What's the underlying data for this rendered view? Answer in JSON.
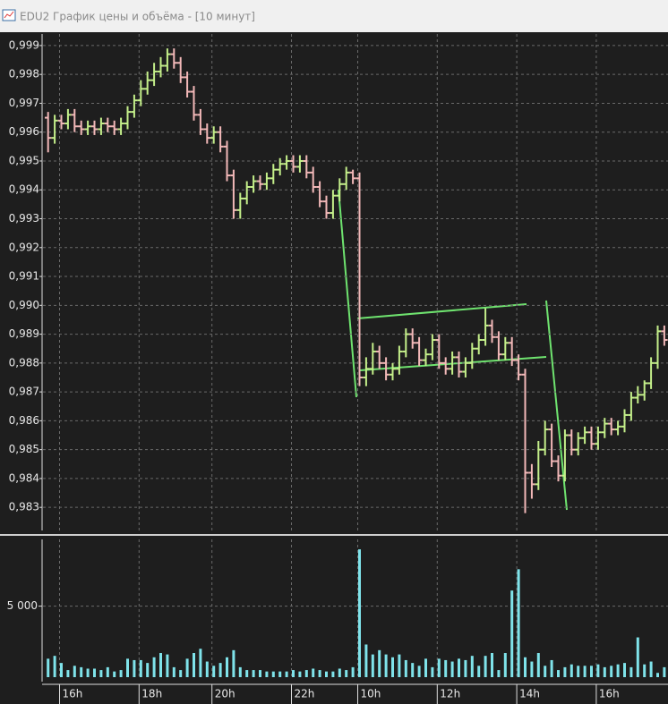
{
  "window_title": "EDU2 График цены и объёма - [10 минут]",
  "chart_data": [
    {
      "type": "ohlc",
      "up_color": "#c4ef8a",
      "down_color": "#f2b8b8",
      "grid": true,
      "ylim": [
        0.9822,
        0.9994
      ],
      "yticks": [
        {
          "value": 0.999,
          "label": "0,999"
        },
        {
          "value": 0.998,
          "label": "0,998"
        },
        {
          "value": 0.997,
          "label": "0,997"
        },
        {
          "value": 0.996,
          "label": "0,996"
        },
        {
          "value": 0.995,
          "label": "0,995"
        },
        {
          "value": 0.994,
          "label": "0,994"
        },
        {
          "value": 0.993,
          "label": "0,993"
        },
        {
          "value": 0.992,
          "label": "0,992"
        },
        {
          "value": 0.991,
          "label": "0,991"
        },
        {
          "value": 0.99,
          "label": "0,990"
        },
        {
          "value": 0.989,
          "label": "0,989"
        },
        {
          "value": 0.988,
          "label": "0,988"
        },
        {
          "value": 0.987,
          "label": "0,987"
        },
        {
          "value": 0.986,
          "label": "0,986"
        },
        {
          "value": 0.985,
          "label": "0,985"
        },
        {
          "value": 0.984,
          "label": "0,984"
        },
        {
          "value": 0.983,
          "label": "0,983"
        }
      ],
      "open": [
        0.9965,
        0.9958,
        0.9964,
        0.9963,
        0.9966,
        0.9962,
        0.9961,
        0.9962,
        0.9961,
        0.9963,
        0.9962,
        0.9961,
        0.9963,
        0.9967,
        0.9971,
        0.9975,
        0.9978,
        0.9981,
        0.9983,
        0.9987,
        0.9984,
        0.9979,
        0.9974,
        0.9966,
        0.9961,
        0.9958,
        0.996,
        0.9955,
        0.9945,
        0.9933,
        0.9937,
        0.9941,
        0.9943,
        0.9942,
        0.9944,
        0.9947,
        0.9949,
        0.995,
        0.9948,
        0.995,
        0.9946,
        0.9941,
        0.9936,
        0.9932,
        0.9938,
        0.9942,
        0.9946,
        0.9944,
        0.9875,
        0.9878,
        0.9884,
        0.988,
        0.9876,
        0.9878,
        0.9884,
        0.989,
        0.9887,
        0.9881,
        0.9883,
        0.9888,
        0.988,
        0.9878,
        0.9882,
        0.9877,
        0.988,
        0.9885,
        0.9888,
        0.9893,
        0.9889,
        0.9883,
        0.9887,
        0.9881,
        0.9876,
        0.9842,
        0.9838,
        0.985,
        0.9857,
        0.9846,
        0.9841,
        0.9855,
        0.985,
        0.9854,
        0.9856,
        0.9852,
        0.9856,
        0.9859,
        0.9857,
        0.9858,
        0.9862,
        0.9868,
        0.9869,
        0.9873,
        0.988,
        0.9891
      ],
      "high": [
        0.9967,
        0.9966,
        0.9966,
        0.9968,
        0.9968,
        0.9964,
        0.9964,
        0.9964,
        0.9965,
        0.9965,
        0.9964,
        0.9965,
        0.9969,
        0.9973,
        0.9978,
        0.9981,
        0.9984,
        0.9986,
        0.9989,
        0.9989,
        0.9986,
        0.9981,
        0.9976,
        0.9968,
        0.9963,
        0.9962,
        0.9962,
        0.9957,
        0.9947,
        0.9939,
        0.9943,
        0.9945,
        0.9945,
        0.9946,
        0.9949,
        0.9951,
        0.9952,
        0.9952,
        0.9952,
        0.9952,
        0.9948,
        0.9943,
        0.9938,
        0.994,
        0.9944,
        0.9948,
        0.9947,
        0.9946,
        0.9882,
        0.9887,
        0.9886,
        0.9882,
        0.988,
        0.9886,
        0.9892,
        0.9892,
        0.9889,
        0.9885,
        0.989,
        0.989,
        0.9882,
        0.9884,
        0.9884,
        0.9882,
        0.9887,
        0.989,
        0.9899,
        0.9895,
        0.9891,
        0.9889,
        0.9889,
        0.9883,
        0.9878,
        0.9845,
        0.9853,
        0.986,
        0.9859,
        0.9848,
        0.9857,
        0.9857,
        0.9856,
        0.9858,
        0.9858,
        0.9858,
        0.9861,
        0.9861,
        0.986,
        0.9864,
        0.987,
        0.9872,
        0.9874,
        0.9882,
        0.9893,
        0.9893
      ],
      "low": [
        0.9953,
        0.9956,
        0.9961,
        0.9961,
        0.996,
        0.9959,
        0.9959,
        0.9959,
        0.9959,
        0.996,
        0.9959,
        0.9959,
        0.9961,
        0.9965,
        0.9969,
        0.9973,
        0.9976,
        0.9979,
        0.9981,
        0.9982,
        0.9977,
        0.9972,
        0.9964,
        0.9959,
        0.9956,
        0.9956,
        0.9953,
        0.9943,
        0.993,
        0.993,
        0.9935,
        0.9939,
        0.994,
        0.994,
        0.9942,
        0.9945,
        0.9947,
        0.9946,
        0.9946,
        0.9944,
        0.9939,
        0.9934,
        0.993,
        0.993,
        0.9936,
        0.994,
        0.9942,
        0.9872,
        0.9872,
        0.9876,
        0.9878,
        0.9874,
        0.9874,
        0.9876,
        0.9882,
        0.9885,
        0.9879,
        0.9879,
        0.9881,
        0.9878,
        0.9876,
        0.9876,
        0.9875,
        0.9875,
        0.9878,
        0.9883,
        0.9886,
        0.9887,
        0.9881,
        0.9881,
        0.9879,
        0.9874,
        0.9828,
        0.9833,
        0.9836,
        0.9848,
        0.9844,
        0.9839,
        0.9839,
        0.9848,
        0.9848,
        0.9852,
        0.985,
        0.985,
        0.9854,
        0.9855,
        0.9855,
        0.9856,
        0.986,
        0.9866,
        0.9867,
        0.9871,
        0.9878,
        0.9886
      ],
      "close": [
        0.9958,
        0.9964,
        0.9963,
        0.9966,
        0.9962,
        0.9961,
        0.9962,
        0.9961,
        0.9963,
        0.9962,
        0.9961,
        0.9963,
        0.9967,
        0.9971,
        0.9975,
        0.9978,
        0.9981,
        0.9983,
        0.9987,
        0.9984,
        0.9979,
        0.9974,
        0.9966,
        0.9961,
        0.9958,
        0.996,
        0.9955,
        0.9945,
        0.9933,
        0.9937,
        0.9941,
        0.9943,
        0.9942,
        0.9944,
        0.9947,
        0.9949,
        0.995,
        0.9948,
        0.995,
        0.9946,
        0.9941,
        0.9936,
        0.9932,
        0.9938,
        0.9942,
        0.9946,
        0.9944,
        0.9875,
        0.9878,
        0.9884,
        0.988,
        0.9876,
        0.9878,
        0.9884,
        0.989,
        0.9887,
        0.9881,
        0.9883,
        0.9888,
        0.988,
        0.9878,
        0.9882,
        0.9877,
        0.988,
        0.9885,
        0.9888,
        0.9893,
        0.9889,
        0.9883,
        0.9887,
        0.9881,
        0.9876,
        0.9842,
        0.9838,
        0.985,
        0.9857,
        0.9846,
        0.9841,
        0.9855,
        0.985,
        0.9854,
        0.9856,
        0.9852,
        0.9856,
        0.9859,
        0.9857,
        0.9858,
        0.9862,
        0.9868,
        0.9869,
        0.9873,
        0.988,
        0.9891,
        0.9888
      ]
    },
    {
      "type": "bar",
      "color": "#7fe3ea",
      "grid": true,
      "ylim": [
        0,
        9700
      ],
      "yticks": [
        {
          "value": 5000,
          "label": "5 000"
        }
      ],
      "categories": [
        null,
        null,
        "16h",
        null,
        null,
        null,
        null,
        null,
        null,
        null,
        null,
        null,
        null,
        null,
        "18h",
        null,
        null,
        null,
        null,
        null,
        null,
        null,
        null,
        null,
        null,
        "20h",
        null,
        null,
        null,
        null,
        null,
        null,
        null,
        null,
        null,
        null,
        null,
        "22h",
        null,
        null,
        null,
        null,
        null,
        null,
        null,
        null,
        null,
        "10h",
        null,
        null,
        null,
        null,
        null,
        null,
        null,
        null,
        null,
        null,
        null,
        "12h",
        null,
        null,
        null,
        null,
        null,
        null,
        null,
        null,
        null,
        null,
        null,
        "14h",
        null,
        null,
        null,
        null,
        null,
        null,
        null,
        null,
        null,
        null,
        null,
        "16h",
        null,
        null,
        null,
        null,
        null,
        null,
        null,
        null,
        null,
        null
      ],
      "values": [
        1300,
        1500,
        1000,
        500,
        800,
        700,
        600,
        600,
        500,
        700,
        400,
        500,
        1300,
        1200,
        1200,
        1000,
        1400,
        1700,
        1600,
        700,
        500,
        1300,
        1700,
        2000,
        1100,
        800,
        1000,
        1400,
        1900,
        700,
        500,
        500,
        500,
        400,
        400,
        400,
        400,
        500,
        400,
        500,
        600,
        500,
        400,
        400,
        600,
        500,
        700,
        9000,
        2300,
        1600,
        1900,
        1600,
        1400,
        1600,
        1200,
        1000,
        800,
        1300,
        700,
        1300,
        1200,
        1100,
        1300,
        1200,
        1500,
        800,
        1500,
        1700,
        500,
        1700,
        6100,
        7600,
        1400,
        1100,
        1700,
        800,
        1200,
        500,
        700,
        900,
        800,
        800,
        800,
        900,
        700,
        800,
        900,
        1000,
        700,
        2800,
        900,
        1100,
        300,
        700
      ]
    }
  ]
}
